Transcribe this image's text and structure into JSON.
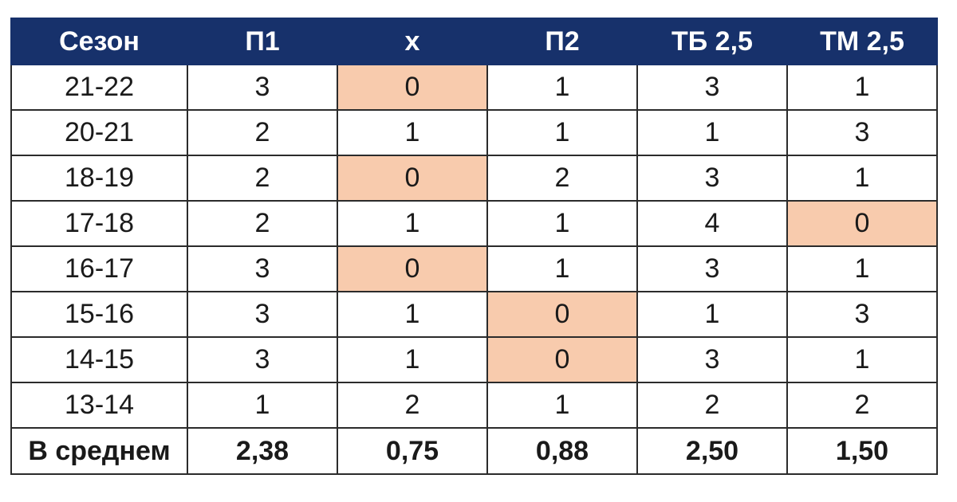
{
  "table": {
    "headers": [
      "Сезон",
      "П1",
      "х",
      "П2",
      "ТБ 2,5",
      "ТМ 2,5"
    ],
    "highlight_color": "#f8cbad",
    "header_color": "#17316b",
    "rows": [
      {
        "cells": [
          "21-22",
          "3",
          "0",
          "1",
          "3",
          "1"
        ],
        "highlight": [
          2
        ]
      },
      {
        "cells": [
          "20-21",
          "2",
          "1",
          "1",
          "1",
          "3"
        ],
        "highlight": []
      },
      {
        "cells": [
          "18-19",
          "2",
          "0",
          "2",
          "3",
          "1"
        ],
        "highlight": [
          2
        ]
      },
      {
        "cells": [
          "17-18",
          "2",
          "1",
          "1",
          "4",
          "0"
        ],
        "highlight": [
          5
        ]
      },
      {
        "cells": [
          "16-17",
          "3",
          "0",
          "1",
          "3",
          "1"
        ],
        "highlight": [
          2
        ]
      },
      {
        "cells": [
          "15-16",
          "3",
          "1",
          "0",
          "1",
          "3"
        ],
        "highlight": [
          3
        ]
      },
      {
        "cells": [
          "14-15",
          "3",
          "1",
          "0",
          "3",
          "1"
        ],
        "highlight": [
          3
        ]
      },
      {
        "cells": [
          "13-14",
          "1",
          "2",
          "1",
          "2",
          "2"
        ],
        "highlight": []
      }
    ],
    "average": [
      "В среднем",
      "2,38",
      "0,75",
      "0,88",
      "2,50",
      "1,50"
    ]
  }
}
